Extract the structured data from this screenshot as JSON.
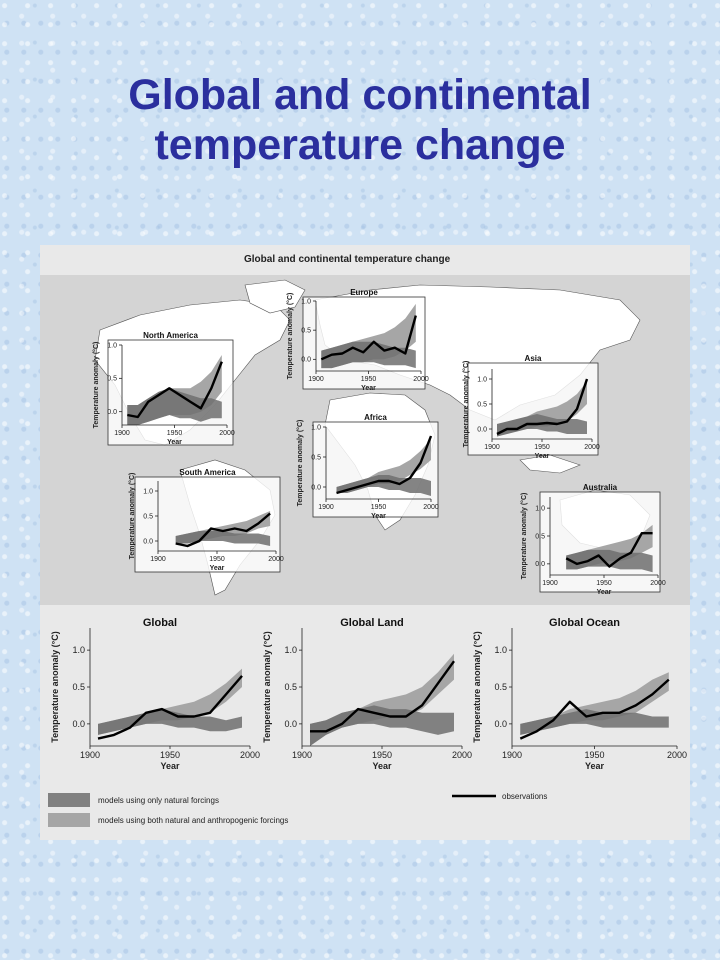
{
  "slide": {
    "title_line1": "Global and continental",
    "title_line2": "temperature change"
  },
  "figure": {
    "title": "Global and continental temperature change",
    "legend": {
      "natural": "models using only natural forcings",
      "both": "models using both natural and anthropogenic forcings",
      "observations": "observations"
    }
  },
  "colors": {
    "title": "#2b2f9e",
    "band_natural": "#6f6f6f",
    "band_both": "#a6a6a6",
    "observations": "#000000",
    "map_land": "#ffffff",
    "map_sea": "#d4d4d4"
  },
  "chart_data": [
    {
      "id": "north-america",
      "type": "line",
      "title": "North America",
      "ylabel": "Temperature anomaly (°C)",
      "xlabel": "Year",
      "xlim": [
        1900,
        2000
      ],
      "ylim": [
        -0.2,
        1.0
      ],
      "xticks": [
        1900,
        1950,
        2000
      ],
      "yticks": [
        0.0,
        0.5,
        1.0
      ],
      "x": [
        1905,
        1915,
        1925,
        1935,
        1945,
        1955,
        1965,
        1975,
        1985,
        1995
      ],
      "observations": [
        -0.05,
        -0.08,
        0.15,
        0.25,
        0.35,
        0.25,
        0.15,
        0.05,
        0.35,
        0.75
      ],
      "both_band": {
        "low": [
          -0.2,
          -0.2,
          -0.15,
          -0.1,
          -0.05,
          -0.05,
          -0.05,
          0.0,
          0.1,
          0.3
        ],
        "high": [
          0.1,
          0.1,
          0.2,
          0.3,
          0.35,
          0.35,
          0.35,
          0.45,
          0.6,
          0.85
        ]
      },
      "natural_band": {
        "low": [
          -0.2,
          -0.2,
          -0.15,
          -0.1,
          -0.05,
          -0.1,
          -0.1,
          -0.15,
          -0.1,
          -0.1
        ],
        "high": [
          0.1,
          0.1,
          0.2,
          0.3,
          0.35,
          0.3,
          0.25,
          0.2,
          0.2,
          0.15
        ]
      }
    },
    {
      "id": "europe",
      "type": "line",
      "title": "Europe",
      "ylabel": "Temperature anomaly (°C)",
      "xlabel": "Year",
      "xlim": [
        1900,
        2000
      ],
      "ylim": [
        -0.2,
        1.0
      ],
      "xticks": [
        1900,
        1950,
        2000
      ],
      "yticks": [
        0.0,
        0.5,
        1.0
      ],
      "x": [
        1905,
        1915,
        1925,
        1935,
        1945,
        1955,
        1965,
        1975,
        1985,
        1995
      ],
      "observations": [
        0.0,
        0.08,
        0.1,
        0.2,
        0.12,
        0.3,
        0.15,
        0.2,
        0.1,
        0.75
      ],
      "both_band": {
        "low": [
          -0.15,
          -0.15,
          -0.1,
          -0.05,
          -0.05,
          0.0,
          0.0,
          0.05,
          0.15,
          0.3
        ],
        "high": [
          0.15,
          0.2,
          0.25,
          0.3,
          0.35,
          0.4,
          0.45,
          0.55,
          0.7,
          0.95
        ]
      },
      "natural_band": {
        "low": [
          -0.15,
          -0.15,
          -0.1,
          -0.05,
          -0.05,
          -0.05,
          -0.1,
          -0.1,
          -0.1,
          -0.15
        ],
        "high": [
          0.15,
          0.2,
          0.25,
          0.3,
          0.3,
          0.3,
          0.25,
          0.2,
          0.2,
          0.15
        ]
      }
    },
    {
      "id": "asia",
      "type": "line",
      "title": "Asia",
      "ylabel": "Temperature anomaly (°C)",
      "xlabel": "Year",
      "xlim": [
        1900,
        2000
      ],
      "ylim": [
        -0.2,
        1.2
      ],
      "xticks": [
        1900,
        1950,
        2000
      ],
      "yticks": [
        0.0,
        0.5,
        1.0
      ],
      "x": [
        1905,
        1915,
        1925,
        1935,
        1945,
        1955,
        1965,
        1975,
        1985,
        1995
      ],
      "observations": [
        -0.1,
        0.0,
        0.0,
        0.1,
        0.1,
        0.12,
        0.1,
        0.15,
        0.4,
        1.0
      ],
      "both_band": {
        "low": [
          -0.15,
          -0.1,
          -0.05,
          0.0,
          0.05,
          0.05,
          0.1,
          0.15,
          0.3,
          0.5
        ],
        "high": [
          0.1,
          0.15,
          0.2,
          0.25,
          0.35,
          0.4,
          0.45,
          0.55,
          0.7,
          0.95
        ]
      },
      "natural_band": {
        "low": [
          -0.15,
          -0.1,
          -0.05,
          0.0,
          0.0,
          -0.05,
          -0.05,
          -0.1,
          -0.1,
          -0.1
        ],
        "high": [
          0.1,
          0.15,
          0.2,
          0.25,
          0.3,
          0.25,
          0.2,
          0.2,
          0.2,
          0.15
        ]
      }
    },
    {
      "id": "africa",
      "type": "line",
      "title": "Africa",
      "ylabel": "Temperature anomaly (°C)",
      "xlabel": "Year",
      "xlim": [
        1900,
        2000
      ],
      "ylim": [
        -0.2,
        1.0
      ],
      "xticks": [
        1900,
        1950,
        2000
      ],
      "yticks": [
        0.0,
        0.5,
        1.0
      ],
      "x": [
        1910,
        1920,
        1930,
        1940,
        1950,
        1960,
        1970,
        1980,
        1990,
        2000
      ],
      "observations": [
        -0.1,
        -0.05,
        0.0,
        0.05,
        0.1,
        0.1,
        0.05,
        0.15,
        0.4,
        0.85
      ],
      "both_band": {
        "low": [
          -0.1,
          -0.1,
          -0.05,
          0.0,
          0.05,
          0.05,
          0.1,
          0.2,
          0.3,
          0.45
        ],
        "high": [
          0.0,
          0.05,
          0.1,
          0.15,
          0.25,
          0.3,
          0.35,
          0.45,
          0.6,
          0.8
        ]
      },
      "natural_band": {
        "low": [
          -0.1,
          -0.1,
          -0.05,
          0.0,
          0.0,
          -0.05,
          -0.05,
          -0.1,
          -0.1,
          -0.15
        ],
        "high": [
          0.0,
          0.05,
          0.1,
          0.15,
          0.2,
          0.2,
          0.15,
          0.15,
          0.15,
          0.1
        ]
      }
    },
    {
      "id": "south-america",
      "type": "line",
      "title": "South America",
      "ylabel": "Temperature anomaly (°C)",
      "xlabel": "Year",
      "xlim": [
        1900,
        2000
      ],
      "ylim": [
        -0.2,
        1.2
      ],
      "xticks": [
        1900,
        1950,
        2000
      ],
      "yticks": [
        0.0,
        0.5,
        1.0
      ],
      "x": [
        1915,
        1925,
        1935,
        1945,
        1955,
        1965,
        1975,
        1985,
        1995
      ],
      "observations": [
        -0.05,
        -0.1,
        0.0,
        0.25,
        0.2,
        0.25,
        0.2,
        0.35,
        0.55
      ],
      "both_band": {
        "low": [
          -0.05,
          -0.05,
          0.0,
          0.05,
          0.1,
          0.1,
          0.15,
          0.25,
          0.3
        ],
        "high": [
          0.1,
          0.15,
          0.2,
          0.25,
          0.3,
          0.35,
          0.4,
          0.5,
          0.6
        ]
      },
      "natural_band": {
        "low": [
          -0.05,
          -0.05,
          0.0,
          0.0,
          0.0,
          -0.05,
          -0.05,
          -0.05,
          -0.1
        ],
        "high": [
          0.1,
          0.15,
          0.2,
          0.2,
          0.2,
          0.15,
          0.15,
          0.15,
          0.1
        ]
      }
    },
    {
      "id": "australia",
      "type": "line",
      "title": "Australia",
      "ylabel": "Temperature anomaly (°C)",
      "xlabel": "Year",
      "xlim": [
        1900,
        2000
      ],
      "ylim": [
        -0.2,
        1.2
      ],
      "xticks": [
        1900,
        1950,
        2000
      ],
      "yticks": [
        0.0,
        0.5,
        1.0
      ],
      "x": [
        1915,
        1925,
        1935,
        1945,
        1955,
        1965,
        1975,
        1985,
        1995
      ],
      "observations": [
        0.1,
        0.0,
        0.05,
        0.15,
        -0.05,
        0.1,
        0.2,
        0.55,
        0.55
      ],
      "both_band": {
        "low": [
          -0.1,
          -0.1,
          -0.05,
          0.0,
          0.05,
          0.05,
          0.1,
          0.2,
          0.3
        ],
        "high": [
          0.15,
          0.2,
          0.25,
          0.3,
          0.35,
          0.4,
          0.45,
          0.55,
          0.7
        ]
      },
      "natural_band": {
        "low": [
          -0.1,
          -0.1,
          -0.05,
          -0.05,
          -0.05,
          -0.1,
          -0.1,
          -0.1,
          -0.15
        ],
        "high": [
          0.15,
          0.2,
          0.25,
          0.25,
          0.25,
          0.2,
          0.2,
          0.2,
          0.15
        ]
      }
    },
    {
      "id": "global",
      "type": "line",
      "title": "Global",
      "ylabel": "Temperature anomaly (°C)",
      "xlabel": "Year",
      "xlim": [
        1900,
        2000
      ],
      "ylim": [
        -0.3,
        1.3
      ],
      "xticks": [
        1900,
        1950,
        2000
      ],
      "yticks": [
        0.0,
        0.5,
        1.0
      ],
      "x": [
        1905,
        1915,
        1925,
        1935,
        1945,
        1955,
        1965,
        1975,
        1985,
        1995
      ],
      "observations": [
        -0.2,
        -0.15,
        -0.05,
        0.15,
        0.2,
        0.1,
        0.1,
        0.15,
        0.4,
        0.65
      ],
      "both_band": {
        "low": [
          -0.15,
          -0.1,
          -0.05,
          0.0,
          0.05,
          0.05,
          0.1,
          0.15,
          0.3,
          0.5
        ],
        "high": [
          0.0,
          0.05,
          0.1,
          0.15,
          0.2,
          0.25,
          0.3,
          0.4,
          0.55,
          0.75
        ]
      },
      "natural_band": {
        "low": [
          -0.15,
          -0.1,
          -0.05,
          0.0,
          0.0,
          -0.05,
          -0.05,
          -0.1,
          -0.1,
          -0.05
        ],
        "high": [
          0.0,
          0.05,
          0.1,
          0.15,
          0.2,
          0.15,
          0.1,
          0.1,
          0.05,
          0.1
        ]
      }
    },
    {
      "id": "global-land",
      "type": "line",
      "title": "Global Land",
      "ylabel": "Temperature anomaly (°C)",
      "xlabel": "Year",
      "xlim": [
        1900,
        2000
      ],
      "ylim": [
        -0.3,
        1.3
      ],
      "xticks": [
        1900,
        1950,
        2000
      ],
      "yticks": [
        0.0,
        0.5,
        1.0
      ],
      "x": [
        1905,
        1915,
        1925,
        1935,
        1945,
        1955,
        1965,
        1975,
        1985,
        1995
      ],
      "observations": [
        -0.1,
        -0.1,
        0.0,
        0.2,
        0.15,
        0.1,
        0.1,
        0.25,
        0.55,
        0.85
      ],
      "both_band": {
        "low": [
          -0.3,
          -0.15,
          -0.05,
          0.0,
          0.05,
          0.1,
          0.1,
          0.2,
          0.4,
          0.6
        ],
        "high": [
          0.0,
          0.05,
          0.15,
          0.2,
          0.3,
          0.35,
          0.4,
          0.5,
          0.7,
          0.95
        ]
      },
      "natural_band": {
        "low": [
          -0.3,
          -0.15,
          -0.05,
          0.0,
          0.0,
          -0.05,
          -0.05,
          -0.1,
          -0.15,
          -0.1
        ],
        "high": [
          0.0,
          0.05,
          0.15,
          0.2,
          0.25,
          0.2,
          0.2,
          0.15,
          0.15,
          0.15
        ]
      }
    },
    {
      "id": "global-ocean",
      "type": "line",
      "title": "Global Ocean",
      "ylabel": "Temperature anomaly (°C)",
      "xlabel": "Year",
      "xlim": [
        1900,
        2000
      ],
      "ylim": [
        -0.3,
        1.3
      ],
      "xticks": [
        1900,
        1950,
        2000
      ],
      "yticks": [
        0.0,
        0.5,
        1.0
      ],
      "x": [
        1905,
        1915,
        1925,
        1935,
        1945,
        1955,
        1965,
        1975,
        1985,
        1995
      ],
      "observations": [
        -0.2,
        -0.1,
        0.05,
        0.3,
        0.1,
        0.15,
        0.15,
        0.25,
        0.4,
        0.6
      ],
      "both_band": {
        "low": [
          -0.15,
          -0.1,
          -0.05,
          0.0,
          0.05,
          0.05,
          0.1,
          0.15,
          0.3,
          0.45
        ],
        "high": [
          0.0,
          0.05,
          0.1,
          0.2,
          0.25,
          0.3,
          0.35,
          0.45,
          0.6,
          0.7
        ]
      },
      "natural_band": {
        "low": [
          -0.15,
          -0.1,
          -0.05,
          0.0,
          0.0,
          -0.05,
          -0.05,
          -0.05,
          -0.05,
          -0.05
        ],
        "high": [
          0.0,
          0.05,
          0.1,
          0.15,
          0.2,
          0.15,
          0.15,
          0.15,
          0.1,
          0.1
        ]
      }
    }
  ]
}
